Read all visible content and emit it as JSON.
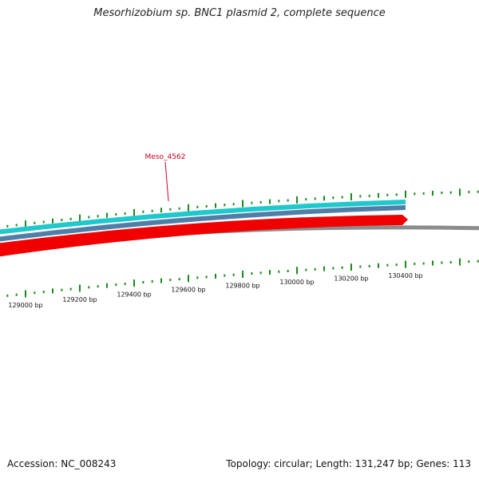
{
  "title": "Mesorhizobium sp. BNC1 plasmid 2, complete sequence",
  "footer": {
    "accession": "Accession: NC_008243",
    "stats": "Topology: circular; Length: 131,247 bp; Genes: 113"
  },
  "colors": {
    "tick": "#1a8a1a",
    "cyan_track": "#1ec8cc",
    "blue_track": "#4f7fa8",
    "gene_red": "#f00000",
    "backbone": "#8c8c8c",
    "label_red": "#c8001e"
  },
  "gene_label": {
    "text": "Meso_4562"
  },
  "tick_labels": [
    "129000 bp",
    "129200 bp",
    "129400 bp",
    "129600 bp",
    "129800 bp",
    "130000 bp",
    "130200 bp",
    "130400 bp"
  ]
}
